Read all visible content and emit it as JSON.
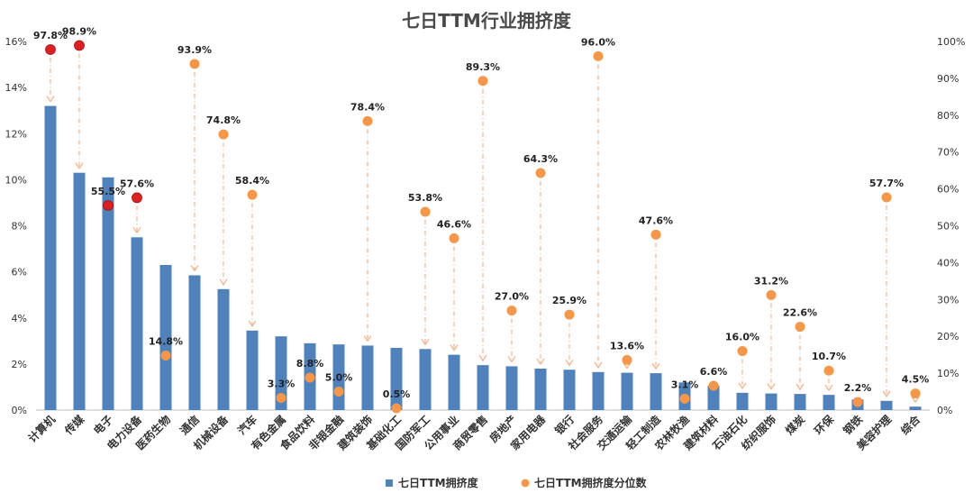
{
  "chart_data": {
    "type": "bar",
    "title": "七日TTM行业拥挤度",
    "categories": [
      "计算机",
      "传媒",
      "电子",
      "电力设备",
      "医药生物",
      "通信",
      "机械设备",
      "汽车",
      "有色金属",
      "食品饮料",
      "非银金融",
      "建筑装饰",
      "基础化工",
      "国防军工",
      "公用事业",
      "商贸零售",
      "房地产",
      "家用电器",
      "银行",
      "社会服务",
      "交通运输",
      "轻工制造",
      "农林牧渔",
      "建筑材料",
      "石油石化",
      "纺织服饰",
      "煤炭",
      "环保",
      "钢铁",
      "美容护理",
      "综合"
    ],
    "series": [
      {
        "name": "七日TTM拥挤度",
        "type": "bar",
        "axis": "left",
        "color": "#4f81bd",
        "values": [
          13.2,
          10.3,
          10.1,
          7.5,
          6.3,
          5.85,
          5.25,
          3.45,
          3.2,
          2.9,
          2.85,
          2.8,
          2.7,
          2.65,
          2.4,
          1.95,
          1.9,
          1.8,
          1.75,
          1.65,
          1.62,
          1.6,
          1.2,
          1.05,
          0.75,
          0.72,
          0.7,
          0.66,
          0.46,
          0.4,
          0.15
        ]
      },
      {
        "name": "七日TTM拥挤度分位数",
        "type": "scatter",
        "axis": "right",
        "color": "#f79646",
        "values": [
          97.8,
          98.9,
          55.5,
          57.6,
          14.8,
          93.9,
          74.8,
          58.4,
          3.3,
          8.8,
          5.0,
          78.4,
          0.5,
          53.8,
          46.6,
          89.3,
          27.0,
          64.3,
          25.9,
          96.0,
          13.6,
          47.6,
          3.1,
          6.6,
          16.0,
          31.2,
          22.6,
          10.7,
          2.2,
          57.7,
          4.5
        ],
        "labels": [
          "97.8%",
          "98.9%",
          "55.5%",
          "57.6%",
          "14.8%",
          "93.9%",
          "74.8%",
          "58.4%",
          "3.3%",
          "8.8%",
          "5.0%",
          "78.4%",
          "0.5%",
          "53.8%",
          "46.6%",
          "89.3%",
          "27.0%",
          "64.3%",
          "25.9%",
          "96.0%",
          "13.6%",
          "47.6%",
          "3.1%",
          "6.6%",
          "16.0%",
          "31.2%",
          "22.6%",
          "10.7%",
          "2.2%",
          "57.7%",
          "4.5%"
        ],
        "highlight_indices": [
          0,
          1,
          2,
          3
        ],
        "highlight_color": "#e02020"
      }
    ],
    "left_axis": {
      "ylim": [
        0,
        16
      ],
      "ticks": [
        "0%",
        "2%",
        "4%",
        "6%",
        "8%",
        "10%",
        "12%",
        "14%",
        "16%"
      ]
    },
    "right_axis": {
      "ylim": [
        0,
        100
      ],
      "ticks": [
        "0%",
        "10%",
        "20%",
        "30%",
        "40%",
        "50%",
        "60%",
        "70%",
        "80%",
        "90%",
        "100%"
      ]
    },
    "grid": false,
    "legend": {
      "placement": "bottom",
      "entries": [
        "七日TTM拥挤度",
        "七日TTM拥挤度分位数"
      ]
    }
  }
}
